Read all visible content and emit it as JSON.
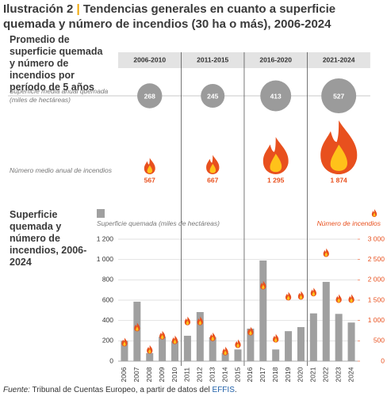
{
  "header": {
    "label": "Ilustración 2",
    "separator": "|",
    "title": "Tendencias generales en cuanto a superficie quemada y número de incendios (30 ha o más), 2006-2024"
  },
  "chart_data": [
    {
      "type": "period-summary",
      "title": "Promedio de superficie quemada y número de incendios por período de 5 años",
      "categories": [
        "2006-2010",
        "2011-2015",
        "2016-2020",
        "2021-2024"
      ],
      "series": [
        {
          "name": "Superficie media anual quemada (miles de hectáreas)",
          "color": "#9b9b9b",
          "values": [
            268,
            245,
            413,
            527
          ]
        },
        {
          "name": "Número medio anual de incendios",
          "color": "#e8501e",
          "values": [
            567,
            667,
            1295,
            1874
          ],
          "value_labels": [
            "567",
            "667",
            "1 295",
            "1 874"
          ]
        }
      ]
    },
    {
      "type": "bar",
      "title": "Superficie quemada y número de incendios, 2006-2024",
      "categories": [
        "2006",
        "2007",
        "2008",
        "2009",
        "2010",
        "2011",
        "2012",
        "2013",
        "2014",
        "2015",
        "2016",
        "2017",
        "2018",
        "2019",
        "2020",
        "2021",
        "2022",
        "2023",
        "2024"
      ],
      "series": [
        {
          "name": "Superficie quemada (miles de hectáreas)",
          "color": "#a0a0a0",
          "values": [
            200,
            585,
            80,
            240,
            195,
            250,
            483,
            235,
            80,
            115,
            320,
            990,
            115,
            295,
            335,
            470,
            780,
            465,
            380
          ]
        },
        {
          "name": "Número de incendios",
          "color": "#e8501e",
          "axis": "y2",
          "values": [
            470,
            840,
            290,
            640,
            525,
            990,
            990,
            600,
            250,
            430,
            740,
            1870,
            565,
            1600,
            1620,
            1700,
            2670,
            1540,
            1540
          ]
        }
      ],
      "ylim": [
        0,
        1200
      ],
      "yticks": [
        0,
        200,
        400,
        600,
        800,
        {
          "value": 1000,
          "label": "1 000"
        },
        {
          "value": 1200,
          "label": "1 200"
        }
      ],
      "y2lim": [
        0,
        3000
      ],
      "y2ticks": [
        0,
        500,
        {
          "value": 1000,
          "label": "1 000"
        },
        {
          "value": 1500,
          "label": "1 500"
        },
        {
          "value": 2000,
          "label": "2 000"
        },
        {
          "value": 2500,
          "label": "2 500"
        },
        {
          "value": 3000,
          "label": "3 000"
        }
      ],
      "grid": true
    }
  ],
  "footer": {
    "source_label": "Fuente:",
    "source": "Tribunal de Cuentas Europeo, a partir de datos del",
    "link": "EFFIS",
    "end": "."
  }
}
